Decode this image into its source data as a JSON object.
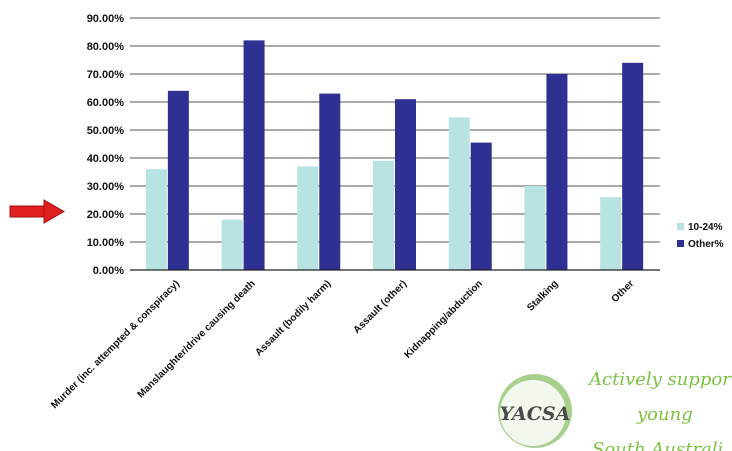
{
  "chart_data": {
    "type": "bar",
    "categories": [
      "Murder (inc. attempted & conspiracy)",
      "Manslaughter/drive causing death",
      "Assault (bodily harm)",
      "Assault (other)",
      "Kidnapping/abduction",
      "Stalking",
      "Other"
    ],
    "series": [
      {
        "name": "10-24%",
        "values": [
          36.0,
          18.0,
          37.0,
          39.0,
          54.5,
          30.0,
          26.0
        ],
        "color": "#b8e3e3"
      },
      {
        "name": "Other%",
        "values": [
          64.0,
          82.0,
          63.0,
          61.0,
          45.5,
          70.0,
          74.0
        ],
        "color": "#2e3192"
      }
    ],
    "ylim": [
      0,
      90
    ],
    "yticks": [
      "0.00%",
      "10.00%",
      "20.00%",
      "30.00%",
      "40.00%",
      "50.00%",
      "60.00%",
      "70.00%",
      "80.00%",
      "90.00%"
    ],
    "title": "",
    "xlabel": "",
    "ylabel": "",
    "grid": true,
    "legend": "right"
  },
  "annotation": {
    "icon": "red-arrow-icon",
    "color": "#e02020",
    "points_to": "20.00%"
  },
  "branding": {
    "logo_text": "YACSA",
    "slogan_lines": [
      "Actively suppor",
      "young",
      "South Australi"
    ]
  }
}
